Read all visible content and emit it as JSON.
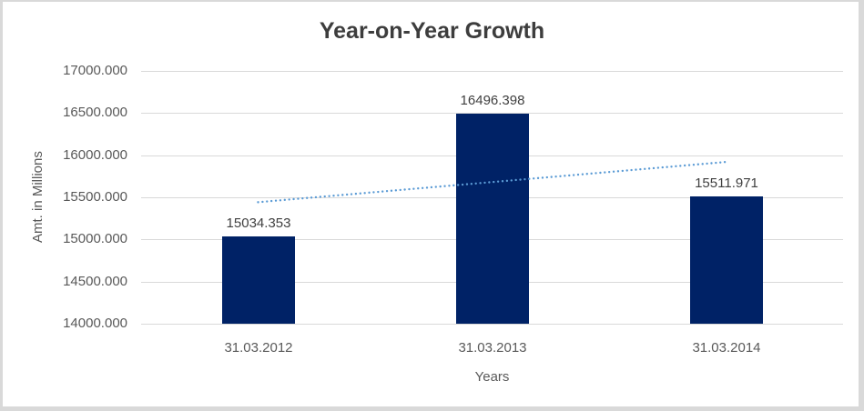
{
  "chart_data": {
    "type": "bar",
    "title": "Year-on-Year Growth",
    "xlabel": "Years",
    "ylabel": "Amt. in Millions",
    "categories": [
      "31.03.2012",
      "31.03.2013",
      "31.03.2014"
    ],
    "values": [
      15034.353,
      16496.398,
      15511.971
    ],
    "data_labels": [
      "15034.353",
      "16496.398",
      "15511.971"
    ],
    "ylim": [
      14000,
      17000
    ],
    "ytick_step": 500,
    "yticks": [
      {
        "value": 17000,
        "label": "17000.000"
      },
      {
        "value": 16500,
        "label": "16500.000"
      },
      {
        "value": 16000,
        "label": "16000.000"
      },
      {
        "value": 15500,
        "label": "15500.000"
      },
      {
        "value": 15000,
        "label": "15000.000"
      },
      {
        "value": 14500,
        "label": "14500.000"
      },
      {
        "value": 14000,
        "label": "14000.000"
      }
    ],
    "grid": true,
    "legend": "none",
    "trendline": {
      "type": "linear",
      "style": "dotted",
      "color": "#5b9bd5"
    },
    "colors": {
      "bar": "#002266",
      "gridline": "#d9d9d9",
      "axis_text": "#595959",
      "data_label_text": "#404040",
      "title_text": "#3d3d3d",
      "background": "#ffffff",
      "frame_border": "#d9d9d9"
    }
  }
}
